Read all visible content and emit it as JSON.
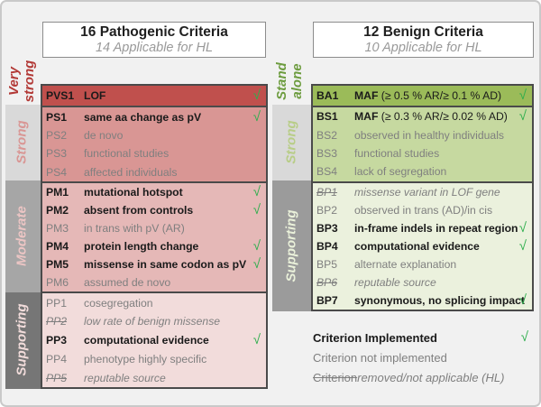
{
  "colors": {
    "page_bg": "#f1f1f1",
    "pvs_row": "#c0504d",
    "ps_row": "#d99694",
    "pm_row": "#e5b8b7",
    "pp_row": "#f2dcdb",
    "ba_row": "#9bbb59",
    "bs_row": "#c6d9a0",
    "bp_row": "#ebf1dd",
    "band_light": "#d9d9d9",
    "band_mid": "#a6a6a6",
    "band_dark": "#767676",
    "band_mid2": "#9b9b9b",
    "text_gray": "#7f7f7f",
    "check": "#2eae4d",
    "label_very_strong": "#b23936",
    "label_strong_p": "#d99694",
    "label_moderate": "#ecc5c4",
    "label_supporting_p": "#f2dcdb",
    "label_stand_alone": "#6d9c3f",
    "label_strong_b": "#b8cd87",
    "label_supporting_b": "#eaf1da"
  },
  "check_glyph": "√",
  "pathogenic": {
    "title": "16 Pathogenic Criteria",
    "subtitle": "14 Applicable for HL",
    "sections": [
      {
        "id": "very-strong",
        "label": "Very strong",
        "rows": [
          {
            "code": "PVS1",
            "desc": "LOF",
            "status": "implemented"
          }
        ]
      },
      {
        "id": "strong",
        "label": "Strong",
        "rows": [
          {
            "code": "PS1",
            "desc": "same aa change as pV",
            "status": "implemented"
          },
          {
            "code": "PS2",
            "desc": "de novo",
            "status": "not_implemented"
          },
          {
            "code": "PS3",
            "desc": "functional studies",
            "status": "not_implemented"
          },
          {
            "code": "PS4",
            "desc": "affected individuals",
            "status": "not_implemented"
          }
        ]
      },
      {
        "id": "moderate",
        "label": "Moderate",
        "rows": [
          {
            "code": "PM1",
            "desc": "mutational hotspot",
            "status": "implemented"
          },
          {
            "code": "PM2",
            "desc": "absent from controls",
            "status": "implemented"
          },
          {
            "code": "PM3",
            "desc": "in trans with pV (AR)",
            "status": "not_implemented"
          },
          {
            "code": "PM4",
            "desc": "protein length change",
            "status": "implemented"
          },
          {
            "code": "PM5",
            "desc": "missense in same codon as pV",
            "status": "implemented"
          },
          {
            "code": "PM6",
            "desc": "assumed de novo",
            "status": "not_implemented"
          }
        ]
      },
      {
        "id": "supporting",
        "label": "Supporting",
        "rows": [
          {
            "code": "PP1",
            "desc": "cosegregation",
            "status": "not_implemented"
          },
          {
            "code": "PP2",
            "desc": "low rate of benign missense",
            "status": "removed"
          },
          {
            "code": "PP3",
            "desc": "computational evidence",
            "status": "implemented"
          },
          {
            "code": "PP4",
            "desc": "phenotype highly specific",
            "status": "not_implemented"
          },
          {
            "code": "PP5",
            "desc": "reputable source",
            "status": "removed"
          }
        ]
      }
    ]
  },
  "benign": {
    "title": "12 Benign Criteria",
    "subtitle": "10 Applicable for HL",
    "sections": [
      {
        "id": "stand-alone",
        "label": "Stand alone",
        "rows": [
          {
            "code": "BA1",
            "desc": "MAF",
            "desc_rest": " (≥ 0.5 % AR/≥ 0.1 % AD)",
            "status": "implemented"
          }
        ]
      },
      {
        "id": "strong",
        "label": "Strong",
        "rows": [
          {
            "code": "BS1",
            "desc": "MAF",
            "desc_rest": " (≥ 0.3 % AR/≥ 0.02 % AD)",
            "status": "implemented"
          },
          {
            "code": "BS2",
            "desc": "observed in healthy individuals",
            "status": "not_implemented"
          },
          {
            "code": "BS3",
            "desc": "functional studies",
            "status": "not_implemented"
          },
          {
            "code": "BS4",
            "desc": "lack of segregation",
            "status": "not_implemented"
          }
        ]
      },
      {
        "id": "supporting",
        "label": "Supporting",
        "rows": [
          {
            "code": "BP1",
            "desc": "missense variant in LOF gene",
            "status": "removed"
          },
          {
            "code": "BP2",
            "desc": "observed in trans (AD)/in cis",
            "status": "not_implemented"
          },
          {
            "code": "BP3",
            "desc": "in-frame indels in repeat region",
            "status": "implemented"
          },
          {
            "code": "BP4",
            "desc": "computational evidence",
            "status": "implemented"
          },
          {
            "code": "BP5",
            "desc": "alternate explanation",
            "status": "not_implemented"
          },
          {
            "code": "BP6",
            "desc": "reputable source",
            "status": "removed"
          },
          {
            "code": "BP7",
            "desc": "synonymous, no splicing impact",
            "status": "implemented"
          }
        ]
      }
    ]
  },
  "legend": {
    "implemented": "Criterion Implemented",
    "not_implemented": "Criterion not implemented",
    "removed_strike": "Criterion",
    "removed_rest": " removed/not applicable (HL)"
  }
}
